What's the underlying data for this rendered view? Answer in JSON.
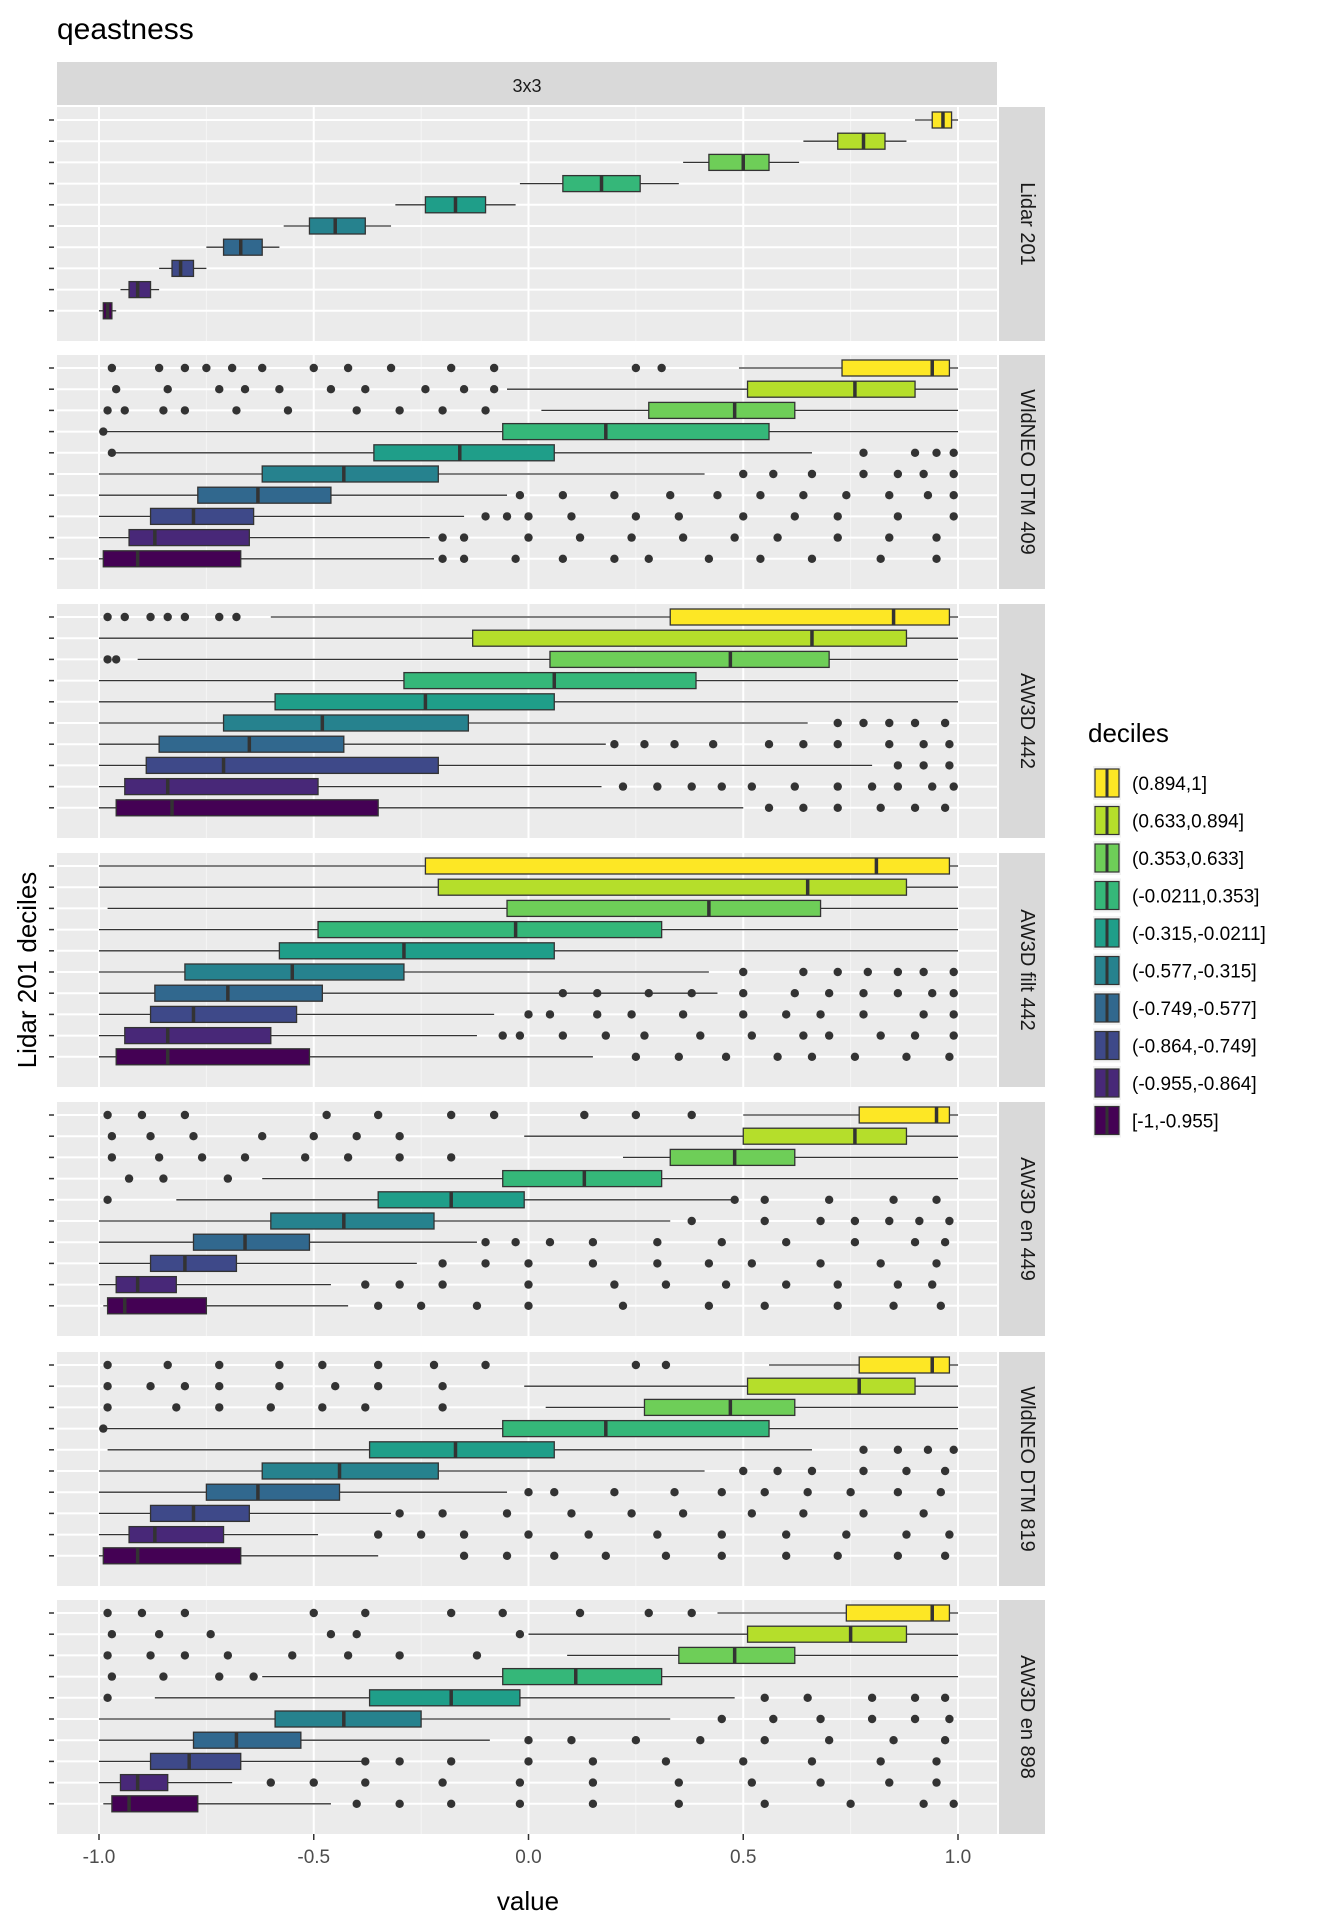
{
  "chart_data": {
    "type": "boxplot",
    "title": "qeastness",
    "facet_column": "3x3",
    "xlabel": "value",
    "ylabel": "Lidar 201 deciles",
    "xlim": [
      -1.0,
      1.0
    ],
    "x_ticks": [
      "-1.0",
      "-0.5",
      "0.0",
      "0.5",
      "1.0"
    ],
    "grid": true,
    "legend": {
      "title": "deciles",
      "position": "right",
      "entries": [
        {
          "label": "(0.894,1]",
          "color": "#FDE725"
        },
        {
          "label": "(0.633,0.894]",
          "color": "#B5DE2B"
        },
        {
          "label": "(0.353,0.633]",
          "color": "#6ECE58"
        },
        {
          "label": "(-0.0211,0.353]",
          "color": "#35B779"
        },
        {
          "label": "(-0.315,-0.0211]",
          "color": "#1F9E89"
        },
        {
          "label": "(-0.577,-0.315]",
          "color": "#26828E"
        },
        {
          "label": "(-0.749,-0.577]",
          "color": "#31688E"
        },
        {
          "label": "(-0.864,-0.749]",
          "color": "#3E4989"
        },
        {
          "label": "(-0.955,-0.864]",
          "color": "#482878"
        },
        {
          "label": "[-1,-0.955]",
          "color": "#440154"
        }
      ]
    },
    "note_box_order": "boxes listed from top row (0.894,1] to bottom row [-1,-0.955]; each box = [whisker_low, q1, median, q3, whisker_high]",
    "panels": [
      {
        "label": "Lidar 201",
        "boxes": [
          [
            0.9,
            0.94,
            0.965,
            0.985,
            1.0
          ],
          [
            0.64,
            0.72,
            0.78,
            0.83,
            0.88
          ],
          [
            0.36,
            0.42,
            0.5,
            0.56,
            0.63
          ],
          [
            -0.02,
            0.08,
            0.17,
            0.26,
            0.35
          ],
          [
            -0.31,
            -0.24,
            -0.17,
            -0.1,
            -0.03
          ],
          [
            -0.57,
            -0.51,
            -0.45,
            -0.38,
            -0.32
          ],
          [
            -0.75,
            -0.71,
            -0.67,
            -0.62,
            -0.58
          ],
          [
            -0.86,
            -0.83,
            -0.81,
            -0.78,
            -0.75
          ],
          [
            -0.95,
            -0.93,
            -0.91,
            -0.88,
            -0.86
          ],
          [
            -1.0,
            -0.99,
            -0.98,
            -0.97,
            -0.96
          ]
        ],
        "outliers": []
      },
      {
        "label": "WldNEO DTM 409",
        "boxes": [
          [
            0.49,
            0.73,
            0.94,
            0.98,
            1.0
          ],
          [
            -0.05,
            0.51,
            0.76,
            0.9,
            1.0
          ],
          [
            0.03,
            0.28,
            0.48,
            0.62,
            1.0
          ],
          [
            -0.99,
            -0.06,
            0.18,
            0.56,
            1.0
          ],
          [
            -0.97,
            -0.36,
            -0.16,
            0.06,
            0.66
          ],
          [
            -1.0,
            -0.62,
            -0.43,
            -0.21,
            0.41
          ],
          [
            -1.0,
            -0.77,
            -0.63,
            -0.46,
            -0.05
          ],
          [
            -1.0,
            -0.88,
            -0.78,
            -0.64,
            -0.15
          ],
          [
            -1.0,
            -0.93,
            -0.87,
            -0.65,
            -0.23
          ],
          [
            -1.0,
            -0.99,
            -0.91,
            -0.67,
            -0.22
          ]
        ],
        "outliers": [
          [
            -0.97,
            -0.86,
            -0.8,
            -0.75,
            -0.69,
            -0.62,
            -0.5,
            -0.42,
            -0.32,
            -0.18,
            -0.08,
            0.25,
            0.31
          ],
          [
            -0.96,
            -0.84,
            -0.72,
            -0.66,
            -0.58,
            -0.46,
            -0.38,
            -0.24,
            -0.15,
            -0.08
          ],
          [
            -0.98,
            -0.94,
            -0.85,
            -0.8,
            -0.68,
            -0.56,
            -0.4,
            -0.3,
            -0.2,
            -0.1
          ],
          [
            -0.99
          ],
          [
            -0.97,
            0.78,
            0.9,
            0.95,
            0.99
          ],
          [
            0.5,
            0.57,
            0.66,
            0.78,
            0.86,
            0.92,
            0.99
          ],
          [
            -0.02,
            0.08,
            0.2,
            0.33,
            0.44,
            0.54,
            0.64,
            0.74,
            0.84,
            0.93,
            0.99
          ],
          [
            -0.1,
            -0.05,
            0.0,
            0.1,
            0.25,
            0.35,
            0.5,
            0.62,
            0.72,
            0.86,
            0.99
          ],
          [
            -0.2,
            -0.15,
            0.0,
            0.12,
            0.24,
            0.36,
            0.48,
            0.58,
            0.72,
            0.84,
            0.95
          ],
          [
            -0.2,
            -0.15,
            -0.03,
            0.08,
            0.2,
            0.28,
            0.42,
            0.54,
            0.66,
            0.82,
            0.95
          ]
        ]
      },
      {
        "label": "AW3D 442",
        "boxes": [
          [
            -0.6,
            0.33,
            0.85,
            0.98,
            1.0
          ],
          [
            -1.0,
            -0.13,
            0.66,
            0.88,
            1.0
          ],
          [
            -0.91,
            0.05,
            0.47,
            0.7,
            1.0
          ],
          [
            -1.0,
            -0.29,
            0.06,
            0.39,
            1.0
          ],
          [
            -1.0,
            -0.59,
            -0.24,
            0.06,
            1.0
          ],
          [
            -1.0,
            -0.71,
            -0.48,
            -0.14,
            0.65
          ],
          [
            -1.0,
            -0.86,
            -0.65,
            -0.43,
            0.18
          ],
          [
            -1.0,
            -0.89,
            -0.71,
            -0.21,
            0.8
          ],
          [
            -1.0,
            -0.94,
            -0.84,
            -0.49,
            0.17
          ],
          [
            -1.0,
            -0.96,
            -0.83,
            -0.35,
            0.5
          ]
        ],
        "outliers": [
          [
            -0.98,
            -0.94,
            -0.88,
            -0.84,
            -0.8,
            -0.72,
            -0.68
          ],
          [],
          [
            -0.98,
            -0.96
          ],
          [],
          [],
          [
            0.72,
            0.78,
            0.84,
            0.9,
            0.97
          ],
          [
            0.2,
            0.27,
            0.34,
            0.43,
            0.56,
            0.64,
            0.72,
            0.84,
            0.92,
            0.98
          ],
          [
            0.86,
            0.92,
            0.98
          ],
          [
            0.22,
            0.3,
            0.38,
            0.45,
            0.52,
            0.62,
            0.72,
            0.8,
            0.86,
            0.94,
            0.99
          ],
          [
            0.56,
            0.64,
            0.72,
            0.82,
            0.9,
            0.97
          ]
        ]
      },
      {
        "label": "AW3D filt 442",
        "boxes": [
          [
            -1.0,
            -0.24,
            0.81,
            0.98,
            1.0
          ],
          [
            -1.0,
            -0.21,
            0.65,
            0.88,
            1.0
          ],
          [
            -0.98,
            -0.05,
            0.42,
            0.68,
            1.0
          ],
          [
            -1.0,
            -0.49,
            -0.03,
            0.31,
            1.0
          ],
          [
            -1.0,
            -0.58,
            -0.29,
            0.06,
            1.0
          ],
          [
            -1.0,
            -0.8,
            -0.55,
            -0.29,
            0.42
          ],
          [
            -1.0,
            -0.87,
            -0.7,
            -0.48,
            0.44
          ],
          [
            -1.0,
            -0.88,
            -0.78,
            -0.54,
            -0.08
          ],
          [
            -1.0,
            -0.94,
            -0.84,
            -0.6,
            -0.12
          ],
          [
            -1.0,
            -0.96,
            -0.84,
            -0.51,
            0.15
          ]
        ],
        "outliers": [
          [],
          [],
          [],
          [],
          [],
          [
            0.5,
            0.64,
            0.72,
            0.79,
            0.86,
            0.92,
            0.99
          ],
          [
            0.08,
            0.16,
            0.28,
            0.38,
            0.5,
            0.62,
            0.7,
            0.78,
            0.86,
            0.94,
            0.99
          ],
          [
            0.0,
            0.05,
            0.16,
            0.24,
            0.36,
            0.5,
            0.6,
            0.68,
            0.78,
            0.92,
            0.99
          ],
          [
            -0.06,
            -0.02,
            0.08,
            0.18,
            0.27,
            0.4,
            0.52,
            0.64,
            0.7,
            0.82,
            0.9,
            0.99
          ],
          [
            0.25,
            0.35,
            0.46,
            0.58,
            0.66,
            0.76,
            0.88,
            0.98
          ]
        ]
      },
      {
        "label": "AW3D en 449",
        "boxes": [
          [
            0.5,
            0.77,
            0.95,
            0.98,
            1.0
          ],
          [
            -0.01,
            0.5,
            0.76,
            0.88,
            1.0
          ],
          [
            0.22,
            0.33,
            0.48,
            0.62,
            1.0
          ],
          [
            -0.62,
            -0.06,
            0.13,
            0.31,
            1.0
          ],
          [
            -0.82,
            -0.35,
            -0.18,
            -0.01,
            0.48
          ],
          [
            -1.0,
            -0.6,
            -0.43,
            -0.22,
            0.33
          ],
          [
            -1.0,
            -0.78,
            -0.66,
            -0.51,
            -0.12
          ],
          [
            -1.0,
            -0.88,
            -0.8,
            -0.68,
            -0.26
          ],
          [
            -1.0,
            -0.96,
            -0.91,
            -0.82,
            -0.46
          ],
          [
            -0.99,
            -0.98,
            -0.94,
            -0.75,
            -0.42
          ]
        ],
        "outliers": [
          [
            -0.98,
            -0.9,
            -0.8,
            -0.47,
            -0.35,
            -0.18,
            -0.08,
            0.13,
            0.25,
            0.38
          ],
          [
            -0.97,
            -0.88,
            -0.78,
            -0.62,
            -0.5,
            -0.4,
            -0.3
          ],
          [
            -0.97,
            -0.86,
            -0.76,
            -0.66,
            -0.52,
            -0.42,
            -0.3,
            -0.18
          ],
          [
            -0.93,
            -0.85,
            -0.7
          ],
          [
            -0.98,
            0.48,
            0.55,
            0.7,
            0.85,
            0.95
          ],
          [
            0.38,
            0.55,
            0.68,
            0.76,
            0.84,
            0.91,
            0.98
          ],
          [
            -0.1,
            -0.03,
            0.05,
            0.15,
            0.3,
            0.45,
            0.6,
            0.76,
            0.9,
            0.97
          ],
          [
            -0.2,
            -0.1,
            0.0,
            0.15,
            0.3,
            0.42,
            0.52,
            0.68,
            0.82,
            0.95
          ],
          [
            -0.38,
            -0.3,
            -0.2,
            0.0,
            0.2,
            0.32,
            0.46,
            0.6,
            0.72,
            0.86,
            0.94
          ],
          [
            -0.35,
            -0.25,
            -0.12,
            0.0,
            0.22,
            0.42,
            0.55,
            0.72,
            0.85,
            0.96
          ]
        ]
      },
      {
        "label": "WldNEO DTM 819",
        "boxes": [
          [
            0.56,
            0.77,
            0.94,
            0.98,
            1.0
          ],
          [
            -0.01,
            0.51,
            0.77,
            0.9,
            1.0
          ],
          [
            0.04,
            0.27,
            0.47,
            0.62,
            1.0
          ],
          [
            -0.99,
            -0.06,
            0.18,
            0.56,
            1.0
          ],
          [
            -0.98,
            -0.37,
            -0.17,
            0.06,
            0.66
          ],
          [
            -1.0,
            -0.62,
            -0.44,
            -0.21,
            0.41
          ],
          [
            -1.0,
            -0.75,
            -0.63,
            -0.44,
            -0.05
          ],
          [
            -1.0,
            -0.88,
            -0.78,
            -0.65,
            -0.32
          ],
          [
            -1.0,
            -0.93,
            -0.87,
            -0.71,
            -0.49
          ],
          [
            -1.0,
            -0.99,
            -0.91,
            -0.67,
            -0.35
          ]
        ],
        "outliers": [
          [
            -0.98,
            -0.84,
            -0.72,
            -0.58,
            -0.48,
            -0.35,
            -0.22,
            -0.1,
            0.25,
            0.32
          ],
          [
            -0.98,
            -0.88,
            -0.8,
            -0.72,
            -0.58,
            -0.45,
            -0.35,
            -0.2
          ],
          [
            -0.98,
            -0.82,
            -0.72,
            -0.6,
            -0.48,
            -0.38,
            -0.2
          ],
          [
            -0.99
          ],
          [
            0.78,
            0.86,
            0.93,
            0.99
          ],
          [
            0.5,
            0.58,
            0.66,
            0.78,
            0.88,
            0.97
          ],
          [
            0.0,
            0.06,
            0.2,
            0.34,
            0.45,
            0.55,
            0.65,
            0.75,
            0.86,
            0.96
          ],
          [
            -0.3,
            -0.2,
            -0.05,
            0.1,
            0.24,
            0.36,
            0.52,
            0.64,
            0.78,
            0.92
          ],
          [
            -0.35,
            -0.25,
            -0.15,
            0.0,
            0.14,
            0.3,
            0.45,
            0.6,
            0.74,
            0.88,
            0.98
          ],
          [
            -0.15,
            -0.05,
            0.06,
            0.18,
            0.32,
            0.45,
            0.6,
            0.72,
            0.86,
            0.97
          ]
        ]
      },
      {
        "label": "AW3D en 898",
        "boxes": [
          [
            0.44,
            0.74,
            0.94,
            0.98,
            1.0
          ],
          [
            0.0,
            0.51,
            0.75,
            0.88,
            1.0
          ],
          [
            0.09,
            0.35,
            0.48,
            0.62,
            1.0
          ],
          [
            -0.62,
            -0.06,
            0.11,
            0.31,
            1.0
          ],
          [
            -0.87,
            -0.37,
            -0.18,
            -0.02,
            0.48
          ],
          [
            -1.0,
            -0.59,
            -0.43,
            -0.25,
            0.33
          ],
          [
            -1.0,
            -0.78,
            -0.68,
            -0.53,
            -0.09
          ],
          [
            -1.0,
            -0.88,
            -0.79,
            -0.67,
            -0.38
          ],
          [
            -1.0,
            -0.95,
            -0.91,
            -0.84,
            -0.69
          ],
          [
            -0.99,
            -0.97,
            -0.93,
            -0.77,
            -0.46
          ]
        ],
        "outliers": [
          [
            -0.98,
            -0.9,
            -0.8,
            -0.5,
            -0.38,
            -0.18,
            -0.06,
            0.12,
            0.28,
            0.38
          ],
          [
            -0.97,
            -0.86,
            -0.74,
            -0.46,
            -0.4,
            -0.02
          ],
          [
            -0.98,
            -0.88,
            -0.8,
            -0.7,
            -0.55,
            -0.42,
            -0.3,
            -0.12
          ],
          [
            -0.97,
            -0.85,
            -0.72,
            -0.64
          ],
          [
            -0.98,
            0.55,
            0.65,
            0.8,
            0.9,
            0.97
          ],
          [
            0.45,
            0.57,
            0.68,
            0.8,
            0.9,
            0.98
          ],
          [
            0.0,
            0.1,
            0.25,
            0.4,
            0.55,
            0.7,
            0.85,
            0.97
          ],
          [
            -0.38,
            -0.3,
            -0.18,
            0.0,
            0.15,
            0.32,
            0.5,
            0.66,
            0.82,
            0.95
          ],
          [
            -0.6,
            -0.5,
            -0.38,
            -0.2,
            -0.02,
            0.15,
            0.35,
            0.52,
            0.68,
            0.84,
            0.95
          ],
          [
            -0.4,
            -0.3,
            -0.18,
            -0.02,
            0.15,
            0.35,
            0.55,
            0.75,
            0.92,
            0.99
          ]
        ]
      }
    ]
  }
}
